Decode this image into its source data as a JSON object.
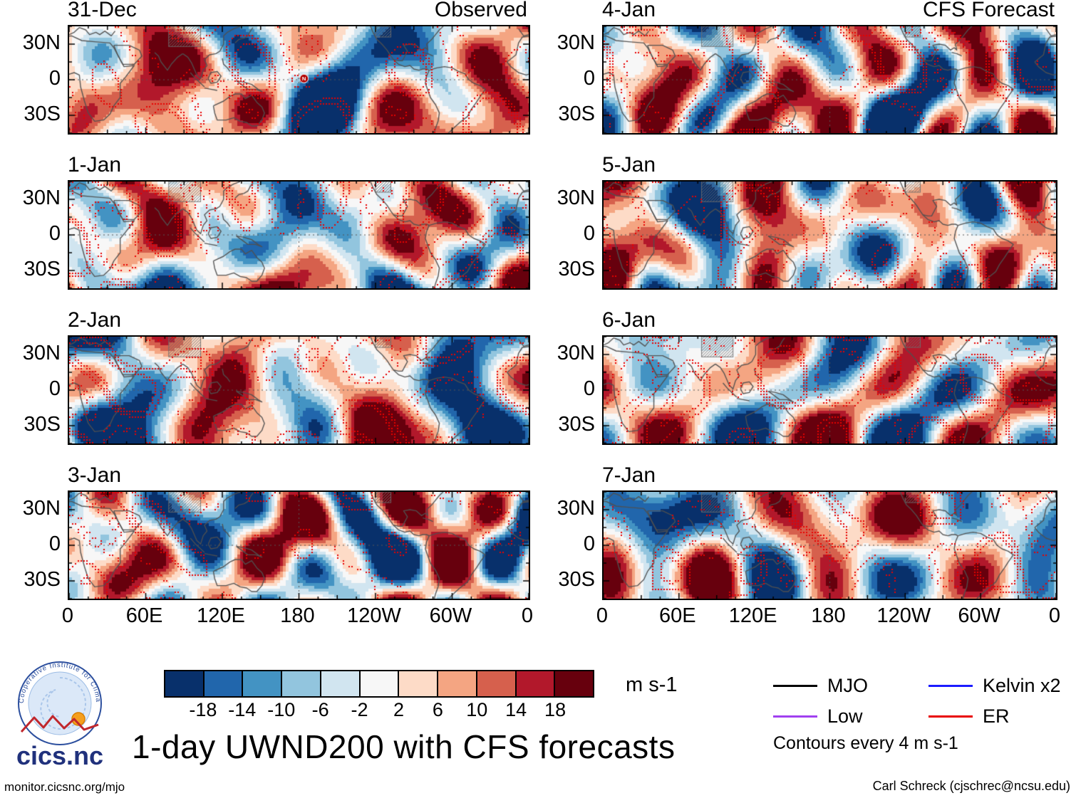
{
  "title": "1-day UWND200 with CFS forecasts",
  "footer": {
    "left": "monitor.cicsnc.org/mjo",
    "right": "Carl Schreck (cjschrec@ncsu.edu)"
  },
  "branding": {
    "logo_text": "cics.nc",
    "logo_ring_text": "Cooperative Institute for Climate and Satellites"
  },
  "chart_data": {
    "type": "heatmap",
    "title": "1-day UWND200 with CFS forecasts",
    "columns": [
      "Observed",
      "CFS Forecast"
    ],
    "panels": [
      {
        "date": "31-Dec",
        "marker": {
          "symbol": "N",
          "lon": 184,
          "lat": 1
        }
      },
      {
        "date": "1-Jan"
      },
      {
        "date": "2-Jan"
      },
      {
        "date": "3-Jan"
      },
      {
        "date": "4-Jan"
      },
      {
        "date": "5-Jan"
      },
      {
        "date": "6-Jan"
      },
      {
        "date": "7-Jan"
      }
    ],
    "x_axis": {
      "ticks": [
        "0",
        "60E",
        "120E",
        "180",
        "120W",
        "60W",
        "0"
      ],
      "range_deg": [
        0,
        360
      ]
    },
    "y_axis": {
      "ticks": [
        "30N",
        "0",
        "30S"
      ],
      "tick_lats": [
        30,
        0,
        -30
      ],
      "range_deg": [
        -45,
        45
      ]
    },
    "colorbar": {
      "units": "m s-1",
      "tick_labels": [
        "-18",
        "-14",
        "-10",
        "-6",
        "-2",
        "2",
        "6",
        "10",
        "14",
        "18"
      ],
      "colors": [
        "#08306b",
        "#2166ac",
        "#4393c3",
        "#92c5de",
        "#d1e5f0",
        "#f7f7f7",
        "#fddbc7",
        "#f4a582",
        "#d6604d",
        "#b2182b",
        "#67000d"
      ]
    },
    "legend": [
      {
        "label": "MJO",
        "color": "#000000"
      },
      {
        "label": "Kelvin x2",
        "color": "#1c1cff"
      },
      {
        "label": "Low",
        "color": "#a040f0"
      },
      {
        "label": "ER",
        "color": "#e80000"
      }
    ],
    "contour_note": "Contours every 4 m s-1"
  }
}
